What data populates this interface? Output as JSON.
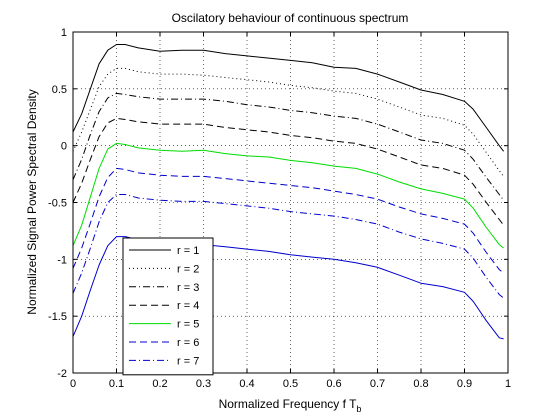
{
  "chart_data": {
    "type": "line",
    "title": "Oscilatory behaviour of continuous spectrum",
    "xlabel": "Normalized Frequency f T",
    "xlabel_subscript": "b",
    "ylabel": "Normalized Signal Power Spectral Density",
    "xlim": [
      0,
      1
    ],
    "ylim": [
      -2,
      1
    ],
    "xticks": [
      0,
      0.1,
      0.2,
      0.3,
      0.4,
      0.5,
      0.6,
      0.7,
      0.8,
      0.9,
      1
    ],
    "xtick_labels": [
      "0",
      "0.1",
      "0.2",
      "0.3",
      "0.4",
      "0.5",
      "0.6",
      "0.7",
      "0.8",
      "0.9",
      "1"
    ],
    "yticks": [
      -2,
      -1.5,
      -1,
      -0.5,
      0,
      0.5,
      1
    ],
    "ytick_labels": [
      "-2",
      "-1.5",
      "-1",
      "-0.5",
      "0",
      "0.5",
      "1"
    ],
    "grid": true,
    "grid_style": "dotted",
    "legend_position": "bottom-left",
    "x": [
      0,
      0.02,
      0.04,
      0.06,
      0.08,
      0.1,
      0.12,
      0.15,
      0.2,
      0.25,
      0.3,
      0.35,
      0.4,
      0.45,
      0.5,
      0.55,
      0.6,
      0.65,
      0.7,
      0.75,
      0.8,
      0.85,
      0.9,
      0.92,
      0.95,
      0.98,
      0.99
    ],
    "series": [
      {
        "name": "r = 1",
        "color": "#000000",
        "dash": "solid",
        "values": [
          0.12,
          0.28,
          0.5,
          0.72,
          0.84,
          0.89,
          0.89,
          0.86,
          0.83,
          0.84,
          0.84,
          0.81,
          0.79,
          0.77,
          0.75,
          0.73,
          0.69,
          0.68,
          0.63,
          0.56,
          0.49,
          0.45,
          0.39,
          0.32,
          0.16,
          0.0,
          -0.05
        ]
      },
      {
        "name": "r = 2",
        "color": "#000000",
        "dash": "dotted",
        "values": [
          -0.05,
          0.12,
          0.32,
          0.52,
          0.63,
          0.68,
          0.68,
          0.65,
          0.63,
          0.63,
          0.62,
          0.6,
          0.58,
          0.56,
          0.53,
          0.51,
          0.48,
          0.46,
          0.41,
          0.34,
          0.27,
          0.24,
          0.18,
          0.1,
          -0.06,
          -0.22,
          -0.27
        ]
      },
      {
        "name": "r = 3",
        "color": "#000000",
        "dash": "dashdot",
        "values": [
          -0.3,
          -0.12,
          0.1,
          0.3,
          0.42,
          0.46,
          0.45,
          0.43,
          0.41,
          0.41,
          0.41,
          0.39,
          0.36,
          0.34,
          0.31,
          0.29,
          0.26,
          0.24,
          0.19,
          0.12,
          0.05,
          0.02,
          -0.04,
          -0.12,
          -0.28,
          -0.43,
          -0.48
        ]
      },
      {
        "name": "r = 4",
        "color": "#000000",
        "dash": "dashed",
        "values": [
          -0.5,
          -0.33,
          -0.12,
          0.08,
          0.2,
          0.24,
          0.23,
          0.21,
          0.19,
          0.19,
          0.19,
          0.16,
          0.14,
          0.12,
          0.09,
          0.07,
          0.04,
          0.02,
          -0.03,
          -0.1,
          -0.17,
          -0.2,
          -0.26,
          -0.34,
          -0.5,
          -0.65,
          -0.7
        ]
      },
      {
        "name": "r = 5",
        "color": "#00dd00",
        "dash": "solid",
        "values": [
          -0.88,
          -0.7,
          -0.45,
          -0.2,
          -0.03,
          0.02,
          0.01,
          -0.02,
          -0.04,
          -0.05,
          -0.04,
          -0.07,
          -0.09,
          -0.1,
          -0.13,
          -0.15,
          -0.18,
          -0.2,
          -0.25,
          -0.32,
          -0.38,
          -0.42,
          -0.47,
          -0.55,
          -0.72,
          -0.87,
          -0.9
        ]
      },
      {
        "name": "r = 6",
        "color": "#0000cc",
        "dash": "dashed",
        "values": [
          -1.08,
          -0.9,
          -0.68,
          -0.45,
          -0.28,
          -0.2,
          -0.21,
          -0.24,
          -0.26,
          -0.27,
          -0.27,
          -0.29,
          -0.31,
          -0.33,
          -0.35,
          -0.37,
          -0.4,
          -0.43,
          -0.47,
          -0.54,
          -0.6,
          -0.64,
          -0.69,
          -0.77,
          -0.94,
          -1.09,
          -1.12
        ]
      },
      {
        "name": "r = 7",
        "color": "#0000cc",
        "dash": "dashdot",
        "values": [
          -1.3,
          -1.12,
          -0.9,
          -0.67,
          -0.5,
          -0.43,
          -0.43,
          -0.46,
          -0.48,
          -0.49,
          -0.49,
          -0.51,
          -0.53,
          -0.55,
          -0.58,
          -0.6,
          -0.62,
          -0.65,
          -0.69,
          -0.76,
          -0.82,
          -0.86,
          -0.91,
          -0.99,
          -1.16,
          -1.31,
          -1.34
        ]
      },
      {
        "name": "",
        "color": "#0000cc",
        "dash": "solid",
        "values": [
          -1.68,
          -1.5,
          -1.27,
          -1.05,
          -0.88,
          -0.8,
          -0.8,
          -0.83,
          -0.86,
          -0.87,
          -0.87,
          -0.89,
          -0.91,
          -0.93,
          -0.96,
          -0.98,
          -1.0,
          -1.03,
          -1.07,
          -1.14,
          -1.21,
          -1.24,
          -1.29,
          -1.37,
          -1.54,
          -1.69,
          -1.7
        ]
      }
    ]
  }
}
